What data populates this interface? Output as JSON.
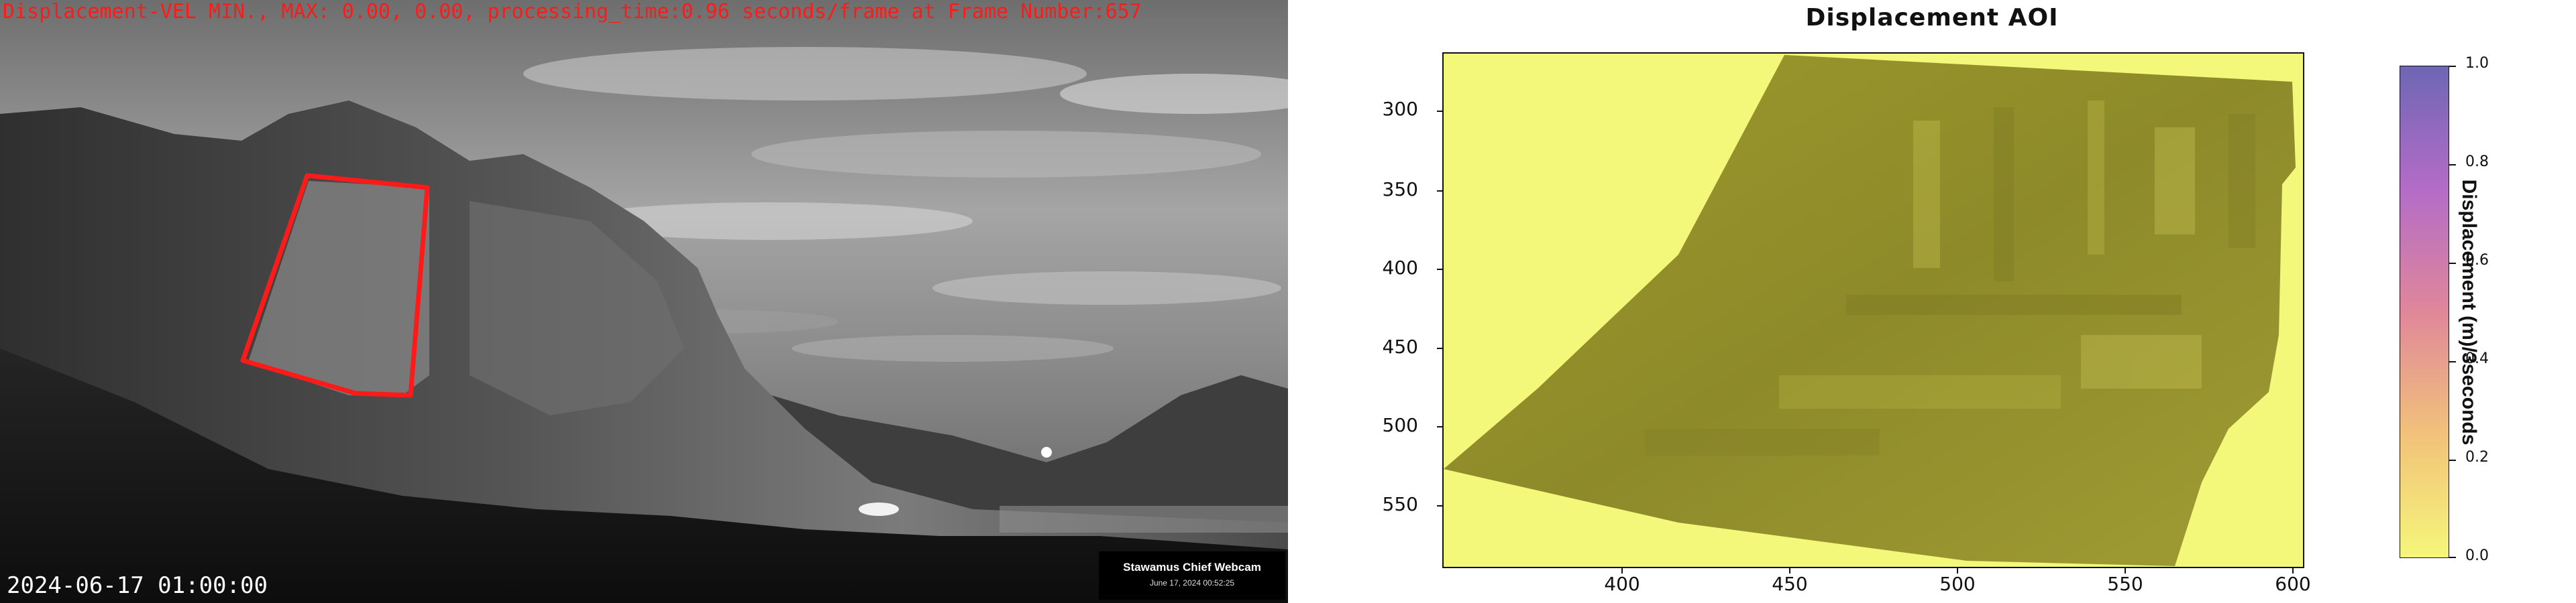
{
  "left_panel": {
    "overlay_text": "Displacement-VEL MIN., MAX: 0.00, 0.00, processing_time:0.96 seconds/frame at Frame Number:657",
    "timestamp": "2024-06-17 01:00:00",
    "webcam_badge": {
      "title": "Stawamus Chief Webcam",
      "subtitle": "June 17, 2024 00:52:25"
    },
    "aoi_color": "#ff1a1a"
  },
  "right_panel": {
    "chart_data": {
      "type": "heatmap",
      "title": "Displacement AOI",
      "xlabel": "",
      "ylabel": "",
      "x_ticks": [
        400,
        450,
        500,
        550,
        600
      ],
      "y_ticks": [
        300,
        350,
        400,
        450,
        500,
        550
      ],
      "xlim": [
        362,
        634
      ],
      "ylim": [
        592,
        270
      ],
      "values_min": 0.0,
      "values_max": 0.0,
      "colorbar": {
        "label": "Displacement (m)/3seconds",
        "ticks": [
          "0.0",
          "0.2",
          "0.4",
          "0.6",
          "0.8",
          "1.0"
        ],
        "range": [
          0.0,
          1.0
        ],
        "colors": [
          "#f5f67a",
          "#f2c27a",
          "#e0879a",
          "#b46cc8",
          "#6e66b4"
        ]
      }
    }
  }
}
